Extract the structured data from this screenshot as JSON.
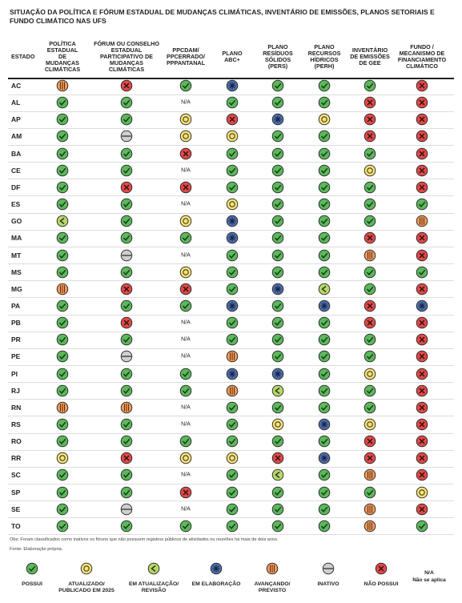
{
  "title": "SITUAÇÃO DA POLÍTICA E FÓRUM ESTADUAL DE MUDANÇAS CLIMÁTICAS, INVENTÁRIO DE EMISSÕES, PLANOS SETORIAIS E FUNDO CLIMÁTICO NAS UFS",
  "table": {
    "headers": [
      "ESTADO",
      "POLÍTICA ESTADUAL DE MUDANÇAS CLIMÁTICAS",
      "FÓRUM OU CONSELHO ESTADUAL PARTICIPATIVO DE MUDANÇAS CLIMÁTICAS",
      "PPCDAM/ PPCERRADO/ PPPANTANAL",
      "PLANO ABC+",
      "PLANO RESÍDUOS SÓLIDOS (PERS)",
      "PLANO RECURSOS HÍDRICOS (PERH)",
      "INVENTÁRIO DE EMISSÕES DE GEE",
      "FUNDO / MECANISMO DE FINANCIAMENTO CLIMÁTICO"
    ],
    "rows": [
      [
        "AC",
        "AVANÇANDO/ PREVISTO",
        "NÃO POSSUI",
        "POSSUI",
        "EM ELABORAÇÃO",
        "POSSUI",
        "POSSUI",
        "POSSUI",
        "NÃO POSSUI"
      ],
      [
        "AL",
        "POSSUI",
        "POSSUI",
        "N/A",
        "POSSUI",
        "POSSUI",
        "POSSUI",
        "NÃO POSSUI",
        "NÃO POSSUI"
      ],
      [
        "AP",
        "POSSUI",
        "POSSUI",
        "ATUALIZADO/ PUBLICADO EM 2025",
        "NÃO POSSUI",
        "EM ELABORAÇÃO",
        "ATUALIZADO/ PUBLICADO EM 2025",
        "NÃO POSSUI",
        "NÃO POSSUI"
      ],
      [
        "AM",
        "POSSUI",
        "INATIVO",
        "ATUALIZADO/ PUBLICADO EM 2025",
        "ATUALIZADO/ PUBLICADO EM 2025",
        "POSSUI",
        "POSSUI",
        "NÃO POSSUI",
        "NÃO POSSUI"
      ],
      [
        "BA",
        "POSSUI",
        "POSSUI",
        "NÃO POSSUI",
        "POSSUI",
        "POSSUI",
        "POSSUI",
        "POSSUI",
        "NÃO POSSUI"
      ],
      [
        "CE",
        "POSSUI",
        "POSSUI",
        "N/A",
        "POSSUI",
        "POSSUI",
        "POSSUI",
        "ATUALIZADO/ PUBLICADO EM 2025",
        "NÃO POSSUI"
      ],
      [
        "DF",
        "POSSUI",
        "NÃO POSSUI",
        "NÃO POSSUI",
        "POSSUI",
        "POSSUI",
        "POSSUI",
        "POSSUI",
        "NÃO POSSUI"
      ],
      [
        "ES",
        "POSSUI",
        "POSSUI",
        "N/A",
        "ATUALIZADO/ PUBLICADO EM 2025",
        "POSSUI",
        "POSSUI",
        "POSSUI",
        "POSSUI"
      ],
      [
        "GO",
        "EM ATUALIZAÇÃO/ REVISÃO",
        "POSSUI",
        "ATUALIZADO/ PUBLICADO EM 2025",
        "EM ELABORAÇÃO",
        "POSSUI",
        "POSSUI",
        "POSSUI",
        "AVANÇANDO/ PREVISTO"
      ],
      [
        "MA",
        "POSSUI",
        "POSSUI",
        "POSSUI",
        "EM ELABORAÇÃO",
        "POSSUI",
        "POSSUI",
        "NÃO POSSUI",
        "NÃO POSSUI"
      ],
      [
        "MT",
        "POSSUI",
        "INATIVO",
        "N/A",
        "POSSUI",
        "POSSUI",
        "POSSUI",
        "AVANÇANDO/ PREVISTO",
        "NÃO POSSUI"
      ],
      [
        "MS",
        "POSSUI",
        "POSSUI",
        "ATUALIZADO/ PUBLICADO EM 2025",
        "POSSUI",
        "POSSUI",
        "POSSUI",
        "POSSUI",
        "POSSUI"
      ],
      [
        "MG",
        "AVANÇANDO/ PREVISTO",
        "NÃO POSSUI",
        "NÃO POSSUI",
        "POSSUI",
        "EM ELABORAÇÃO",
        "EM ATUALIZAÇÃO/ REVISÃO",
        "POSSUI",
        "NÃO POSSUI"
      ],
      [
        "PA",
        "POSSUI",
        "POSSUI",
        "POSSUI",
        "EM ELABORAÇÃO",
        "POSSUI",
        "EM ELABORAÇÃO",
        "NÃO POSSUI",
        "EM ELABORAÇÃO"
      ],
      [
        "PB",
        "POSSUI",
        "NÃO POSSUI",
        "N/A",
        "POSSUI",
        "POSSUI",
        "POSSUI",
        "NÃO POSSUI",
        "NÃO POSSUI"
      ],
      [
        "PR",
        "POSSUI",
        "POSSUI",
        "N/A",
        "POSSUI",
        "POSSUI",
        "POSSUI",
        "POSSUI",
        "NÃO POSSUI"
      ],
      [
        "PE",
        "POSSUI",
        "INATIVO",
        "N/A",
        "AVANÇANDO/ PREVISTO",
        "POSSUI",
        "POSSUI",
        "POSSUI",
        "NÃO POSSUI"
      ],
      [
        "PI",
        "POSSUI",
        "POSSUI",
        "POSSUI",
        "EM ELABORAÇÃO",
        "EM ELABORAÇÃO",
        "POSSUI",
        "ATUALIZADO/ PUBLICADO EM 2025",
        "NÃO POSSUI"
      ],
      [
        "RJ",
        "POSSUI",
        "POSSUI",
        "POSSUI",
        "AVANÇANDO/ PREVISTO",
        "EM ATUALIZAÇÃO/ REVISÃO",
        "POSSUI",
        "POSSUI",
        "NÃO POSSUI"
      ],
      [
        "RN",
        "AVANÇANDO/ PREVISTO",
        "AVANÇANDO/ PREVISTO",
        "N/A",
        "POSSUI",
        "POSSUI",
        "POSSUI",
        "POSSUI",
        "NÃO POSSUI"
      ],
      [
        "RS",
        "POSSUI",
        "POSSUI",
        "N/A",
        "POSSUI",
        "ATUALIZADO/ PUBLICADO EM 2025",
        "EM ELABORAÇÃO",
        "ATUALIZADO/ PUBLICADO EM 2025",
        "NÃO POSSUI"
      ],
      [
        "RO",
        "POSSUI",
        "POSSUI",
        "POSSUI",
        "POSSUI",
        "POSSUI",
        "POSSUI",
        "NÃO POSSUI",
        "NÃO POSSUI"
      ],
      [
        "RR",
        "ATUALIZADO/ PUBLICADO EM 2025",
        "NÃO POSSUI",
        "ATUALIZADO/ PUBLICADO EM 2025",
        "ATUALIZADO/ PUBLICADO EM 2025",
        "NÃO POSSUI",
        "EM ELABORAÇÃO",
        "NÃO POSSUI",
        "NÃO POSSUI"
      ],
      [
        "SC",
        "POSSUI",
        "POSSUI",
        "N/A",
        "POSSUI",
        "EM ATUALIZAÇÃO/ REVISÃO",
        "POSSUI",
        "AVANÇANDO/ PREVISTO",
        "NÃO POSSUI"
      ],
      [
        "SP",
        "POSSUI",
        "POSSUI",
        "NÃO POSSUI",
        "POSSUI",
        "POSSUI",
        "POSSUI",
        "POSSUI",
        "ATUALIZADO/ PUBLICADO EM 2025"
      ],
      [
        "SE",
        "POSSUI",
        "INATIVO",
        "N/A",
        "POSSUI",
        "POSSUI",
        "POSSUI",
        "AVANÇANDO/ PREVISTO",
        "NÃO POSSUI"
      ],
      [
        "TO",
        "POSSUI",
        "POSSUI",
        "POSSUI",
        "POSSUI",
        "POSSUI",
        "POSSUI",
        "AVANÇANDO/ PREVISTO",
        "POSSUI"
      ]
    ]
  },
  "notes": [
    "Obs: Foram classificados como inativos os fóruns que não possuem registros públicos de atividades ou reuniões há mais de dois anos.",
    "Fonte: Elaboração própria."
  ],
  "legend": {
    "items": [
      "POSSUI",
      "ATUALIZADO/ PUBLICADO EM 2025",
      "EM ATUALIZAÇÃO/ REVISÃO",
      "EM ELABORAÇÃO",
      "AVANÇANDO/ PREVISTO",
      "INATIVO",
      "NÃO POSSUI"
    ],
    "na": "N/A",
    "na_text": "Não se aplica"
  }
}
